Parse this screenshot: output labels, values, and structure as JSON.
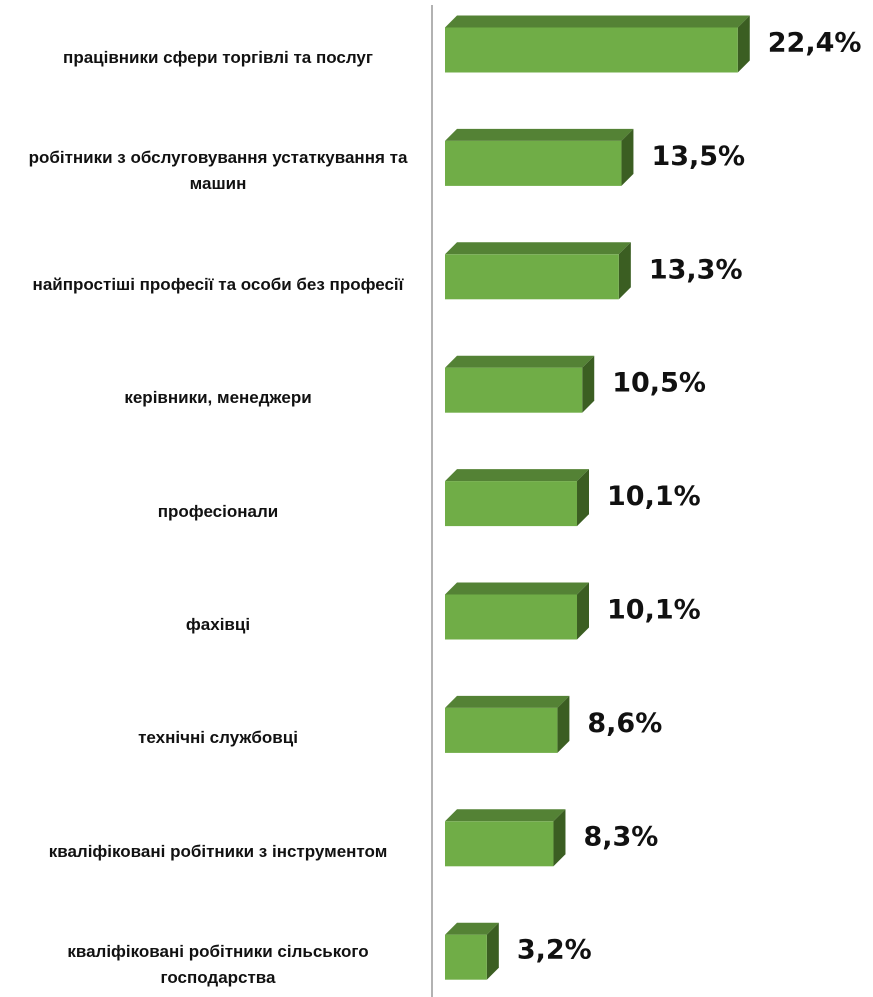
{
  "chart_data": {
    "type": "bar",
    "orientation": "horizontal",
    "categories": [
      "працівники сфери торгівлі та послуг",
      "робітники з обслуговування устаткування та машин",
      "найпростіші професії та особи без професії",
      "керівники, менеджери",
      "професіонали",
      "фахівці",
      "технічні службовці",
      "кваліфіковані робітники з інструментом",
      "кваліфіковані робітники сільського господарства"
    ],
    "values": [
      22.4,
      13.5,
      13.3,
      10.5,
      10.1,
      10.1,
      8.6,
      8.3,
      3.2
    ],
    "value_labels": [
      "22,4%",
      "13,5%",
      "13,3%",
      "10,5%",
      "10,1%",
      "10,1%",
      "8,6%",
      "8,3%",
      "3,2%"
    ],
    "color": "#70ad47",
    "xlim": [
      0,
      25
    ]
  }
}
